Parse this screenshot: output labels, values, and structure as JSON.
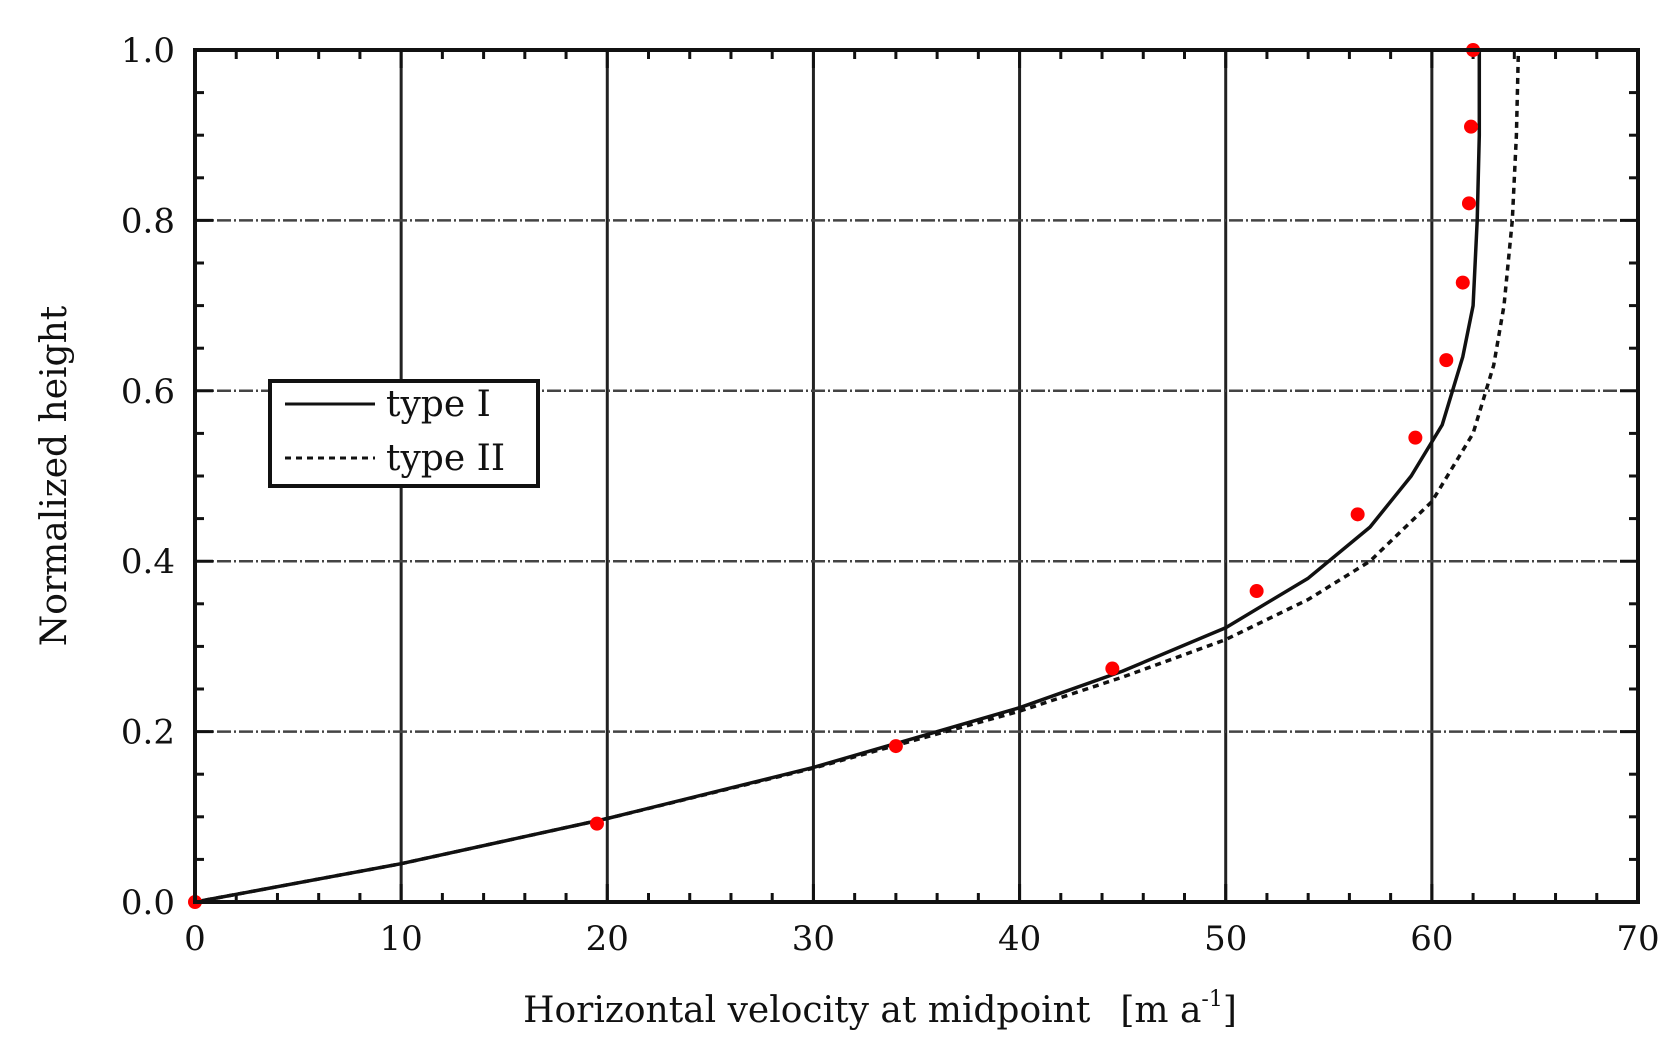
{
  "chart_data": {
    "type": "line",
    "title": "",
    "xlabel": "Horizontal velocity at midpoint",
    "xunit": "[m a",
    "xunit_sup": "-1",
    "xunit_close": "]",
    "ylabel": "Normalized height",
    "xlim": [
      0,
      70
    ],
    "ylim": [
      0,
      1
    ],
    "x_ticks": [
      0,
      10,
      20,
      30,
      40,
      50,
      60,
      70
    ],
    "x_tick_labels": [
      "0",
      "10",
      "20",
      "30",
      "40",
      "50",
      "60",
      "70"
    ],
    "y_ticks": [
      0,
      0.2,
      0.4,
      0.6,
      0.8,
      1.0
    ],
    "y_tick_labels": [
      "0.0",
      "0.2",
      "0.4",
      "0.6",
      "0.8",
      "1.0"
    ],
    "grid": true,
    "legend_position": "middle-left",
    "series": [
      {
        "name": "type I",
        "style": "solid",
        "color": "#111111",
        "x": [
          0,
          10,
          20,
          30,
          40,
          45,
          50,
          54,
          57,
          59,
          60.5,
          61.5,
          62,
          62.2,
          62.3,
          62.3
        ],
        "y": [
          0,
          0.045,
          0.098,
          0.158,
          0.228,
          0.271,
          0.322,
          0.38,
          0.44,
          0.5,
          0.56,
          0.64,
          0.7,
          0.8,
          0.9,
          1.0
        ]
      },
      {
        "name": "type II",
        "style": "dotted",
        "color": "#111111",
        "x": [
          0,
          10,
          20,
          30,
          40,
          45,
          50,
          54,
          57,
          60,
          62,
          63,
          63.5,
          63.9,
          64.1,
          64.2
        ],
        "y": [
          0,
          0.045,
          0.098,
          0.157,
          0.224,
          0.264,
          0.308,
          0.355,
          0.4,
          0.47,
          0.55,
          0.63,
          0.7,
          0.8,
          0.9,
          1.0
        ]
      },
      {
        "name": "",
        "style": "markers",
        "color": "#ff0000",
        "x": [
          0,
          19.5,
          34,
          44.5,
          51.5,
          56.4,
          59.2,
          60.7,
          61.5,
          61.8,
          61.9,
          62
        ],
        "y": [
          0,
          0.092,
          0.183,
          0.274,
          0.365,
          0.455,
          0.545,
          0.636,
          0.727,
          0.82,
          0.91,
          1.0
        ]
      }
    ]
  }
}
